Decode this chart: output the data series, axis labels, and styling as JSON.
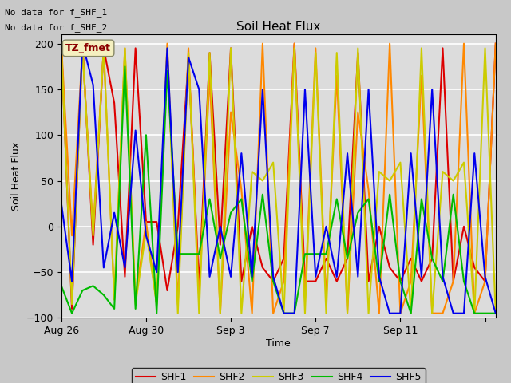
{
  "title": "Soil Heat Flux",
  "xlabel": "Time",
  "ylabel": "Soil Heat Flux",
  "ylim": [
    -100,
    210
  ],
  "yticks": [
    -100,
    -50,
    0,
    50,
    100,
    150,
    200
  ],
  "plot_bg_color": "#dcdcdc",
  "fig_bg_color": "#c8c8c8",
  "annotation_text": "TZ_fmet",
  "top_left_text": [
    "No data for f_SHF_1",
    "No data for f_SHF_2"
  ],
  "legend_entries": [
    "SHF1",
    "SHF2",
    "SHF3",
    "SHF4",
    "SHF5"
  ],
  "colors": {
    "SHF1": "#dd0000",
    "SHF2": "#ff8800",
    "SHF3": "#cccc00",
    "SHF4": "#00bb00",
    "SHF5": "#0000ee"
  },
  "series": {
    "SHF1": {
      "x": [
        0,
        0.5,
        1,
        1.5,
        2,
        2.5,
        3,
        3.5,
        4,
        4.5,
        5,
        5.5,
        6,
        6.5,
        7,
        7.5,
        8,
        8.5,
        9,
        9.5,
        10,
        10.5,
        11,
        11.5,
        12,
        12.5,
        13,
        13.5,
        14,
        14.5,
        15,
        15.5,
        16,
        16.5,
        17,
        17.5,
        18,
        18.5,
        19,
        19.5,
        20,
        20.5
      ],
      "y": [
        200,
        -90,
        200,
        -20,
        195,
        135,
        -55,
        195,
        5,
        5,
        -70,
        0,
        185,
        -65,
        190,
        -20,
        195,
        -60,
        0,
        -45,
        -60,
        -35,
        200,
        -60,
        -60,
        -35,
        -60,
        -35,
        190,
        -60,
        0,
        -45,
        -60,
        -35,
        -60,
        -35,
        195,
        -60,
        0,
        -45,
        -60,
        200
      ]
    },
    "SHF2": {
      "x": [
        0,
        0.5,
        1,
        1.5,
        2,
        2.5,
        3,
        3.5,
        4,
        4.5,
        5,
        5.5,
        6,
        6.5,
        7,
        7.5,
        8,
        8.5,
        9,
        9.5,
        10,
        10.5,
        11,
        11.5,
        12,
        12.5,
        13,
        13.5,
        14,
        14.5,
        15,
        15.5,
        16,
        16.5,
        17,
        17.5,
        18,
        18.5,
        19,
        19.5,
        20,
        20.5
      ],
      "y": [
        200,
        -10,
        195,
        -5,
        195,
        -80,
        195,
        -80,
        5,
        -85,
        200,
        -85,
        195,
        -80,
        165,
        -95,
        125,
        40,
        -95,
        200,
        -95,
        -60,
        200,
        -80,
        195,
        -80,
        165,
        -95,
        125,
        40,
        -95,
        200,
        -95,
        -60,
        165,
        -95,
        -95,
        -60,
        200,
        -95,
        -60,
        200
      ]
    },
    "SHF3": {
      "x": [
        0,
        0.5,
        1,
        1.5,
        2,
        2.5,
        3,
        3.5,
        4,
        4.5,
        5,
        5.5,
        6,
        6.5,
        7,
        7.5,
        8,
        8.5,
        9,
        9.5,
        10,
        10.5,
        11,
        11.5,
        12,
        12.5,
        13,
        13.5,
        14,
        14.5,
        15,
        15.5,
        16,
        16.5,
        17,
        17.5,
        18,
        18.5,
        19,
        19.5,
        20,
        20.5
      ],
      "y": [
        195,
        -85,
        195,
        -10,
        195,
        -80,
        195,
        -85,
        -5,
        -85,
        195,
        -95,
        190,
        -95,
        190,
        -95,
        195,
        -95,
        60,
        50,
        70,
        -95,
        195,
        -95,
        190,
        -95,
        190,
        -95,
        195,
        -95,
        60,
        50,
        70,
        -95,
        195,
        -95,
        60,
        50,
        70,
        -95,
        195,
        -95
      ]
    },
    "SHF4": {
      "x": [
        0,
        0.5,
        1,
        1.5,
        2,
        2.5,
        3,
        3.5,
        4,
        4.5,
        5,
        5.5,
        6,
        6.5,
        7,
        7.5,
        8,
        8.5,
        9,
        9.5,
        10,
        10.5,
        11,
        11.5,
        12,
        12.5,
        13,
        13.5,
        14,
        14.5,
        15,
        15.5,
        16,
        16.5,
        17,
        17.5,
        18,
        18.5,
        19,
        19.5,
        20,
        20.5
      ],
      "y": [
        -65,
        -95,
        -70,
        -65,
        -75,
        -90,
        175,
        -90,
        100,
        -95,
        170,
        -30,
        -30,
        -30,
        30,
        -35,
        15,
        30,
        -60,
        35,
        -60,
        -95,
        -95,
        -30,
        -30,
        -30,
        30,
        -35,
        15,
        30,
        -60,
        35,
        -60,
        -95,
        30,
        -35,
        -60,
        35,
        -60,
        -95,
        -95,
        -95
      ]
    },
    "SHF5": {
      "x": [
        0,
        0.5,
        1,
        1.5,
        2,
        2.5,
        3,
        3.5,
        4,
        4.5,
        5,
        5.5,
        6,
        6.5,
        7,
        7.5,
        8,
        8.5,
        9,
        9.5,
        10,
        10.5,
        11,
        11.5,
        12,
        12.5,
        13,
        13.5,
        14,
        14.5,
        15,
        15.5,
        16,
        16.5,
        17,
        17.5,
        18,
        18.5,
        19,
        19.5,
        20,
        20.5
      ],
      "y": [
        25,
        -60,
        200,
        155,
        -45,
        15,
        -45,
        105,
        -10,
        -50,
        195,
        -50,
        185,
        150,
        -55,
        0,
        -55,
        80,
        -55,
        150,
        -55,
        -95,
        -95,
        150,
        -55,
        0,
        -55,
        80,
        -55,
        150,
        -55,
        -95,
        -95,
        80,
        -55,
        150,
        -55,
        -95,
        -95,
        80,
        -55,
        -95
      ]
    }
  },
  "x_tick_positions": [
    0,
    4,
    8,
    12,
    16,
    20
  ],
  "x_tick_labels": [
    "Aug 26",
    "Aug 30",
    "Sep 3",
    "Sep 7",
    "Sep 11",
    ""
  ],
  "linewidth": 1.5
}
